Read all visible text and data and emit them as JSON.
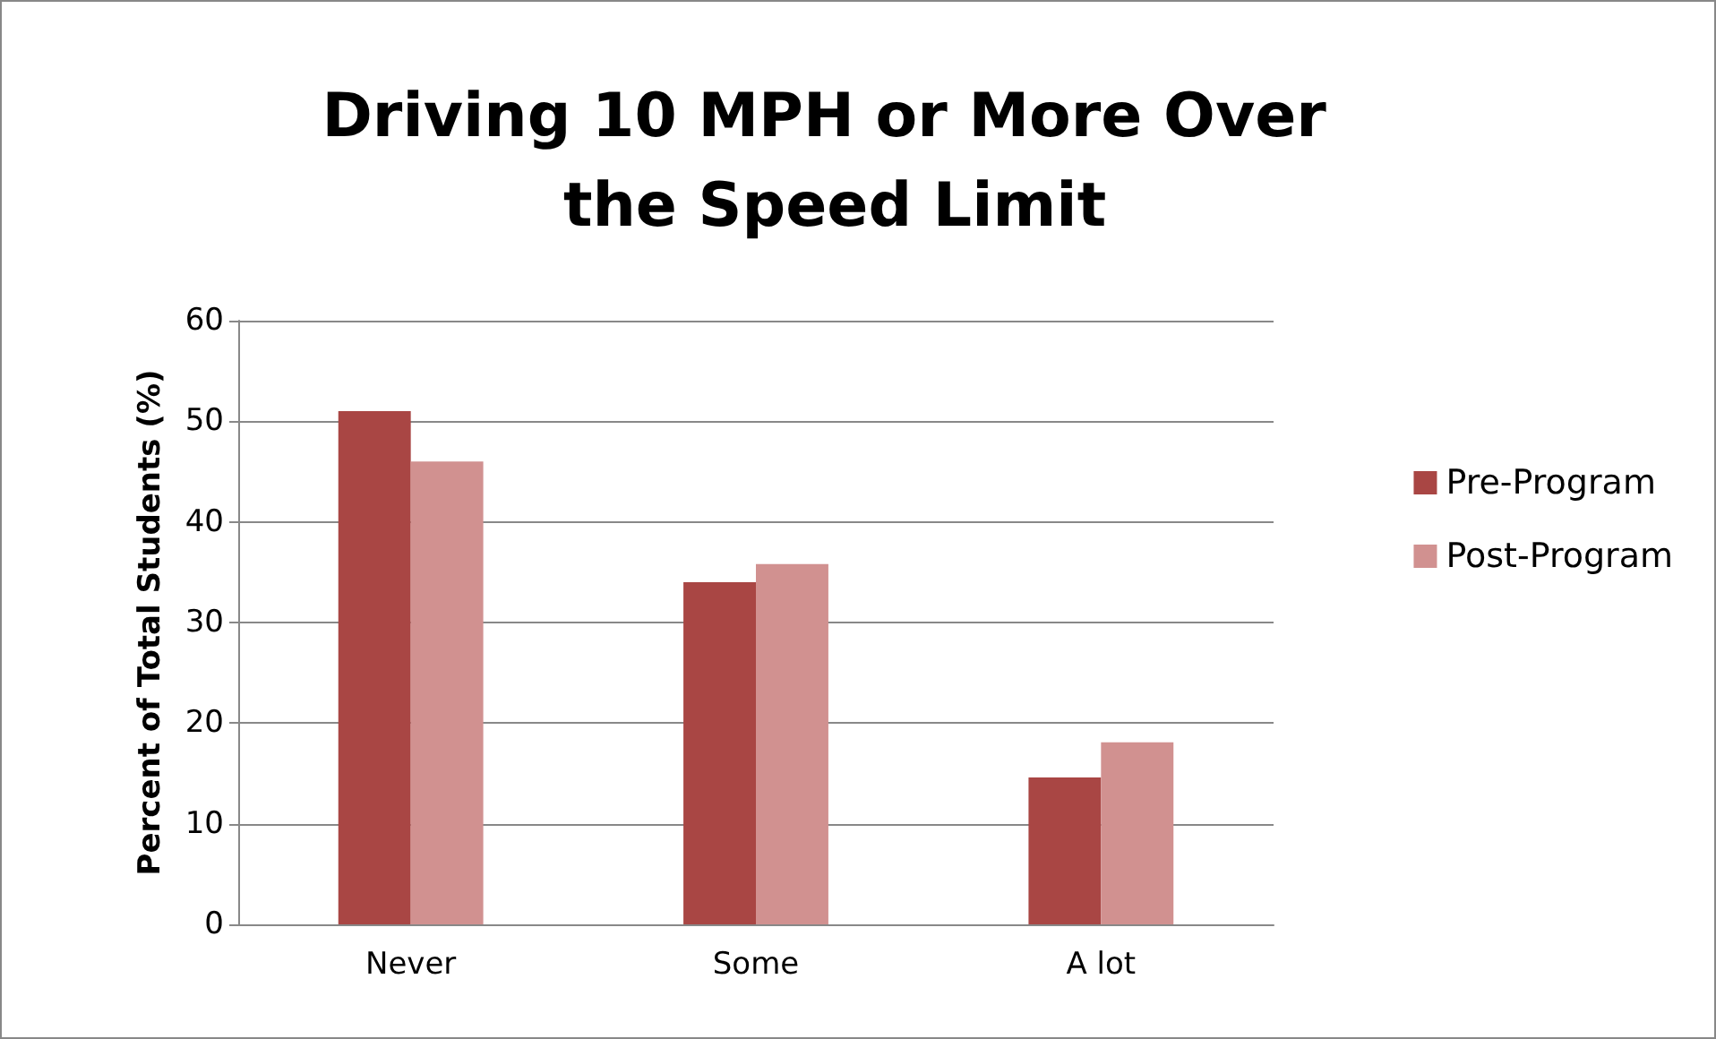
{
  "chart_data": {
    "type": "bar",
    "title": "Driving 10 MPH or More Over the Speed Limit",
    "ylabel": "Percent of Total Students (%)",
    "categories": [
      "Never",
      "Some",
      "A lot"
    ],
    "series": [
      {
        "name": "Pre-Program",
        "color": "#a94644",
        "values": [
          51,
          34,
          14.6
        ]
      },
      {
        "name": "Post-Program",
        "color": "#d19190",
        "values": [
          46,
          35.8,
          18.1
        ]
      }
    ],
    "ylim": [
      0,
      60
    ],
    "yticks": [
      0,
      10,
      20,
      30,
      40,
      50,
      60
    ],
    "grid": "y",
    "legend": "right"
  }
}
